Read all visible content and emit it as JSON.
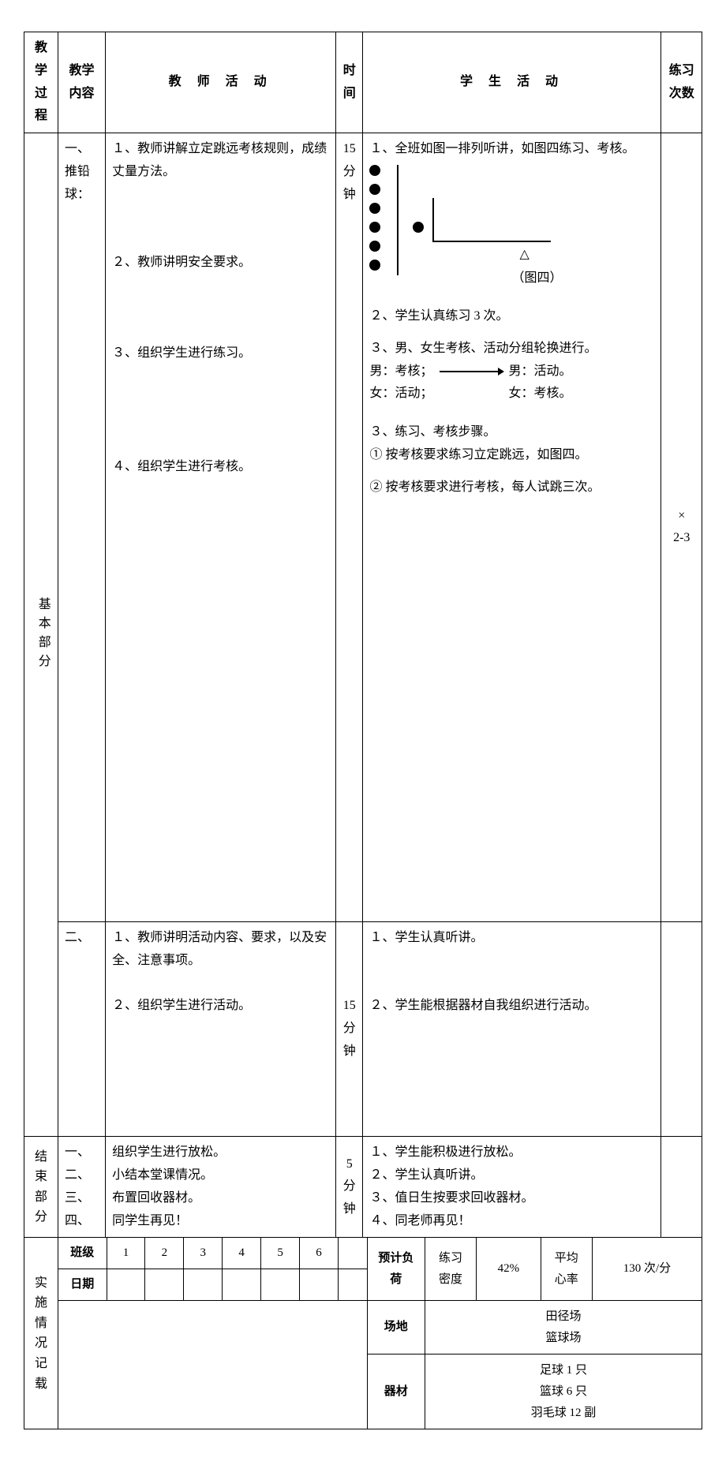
{
  "headers": {
    "process": "教学过程",
    "content": "教学内容",
    "teacher": "教 师 活 动",
    "time": "时间",
    "student": "学 生 活 动",
    "count": "练习次数"
  },
  "basic_section": {
    "process_label": "基本部分",
    "row1": {
      "content": "一、推铅球：",
      "teacher": "１、教师讲解立定跳远考核规则，成绩丈量方法。\n\n\n\n２、教师讲明安全要求。\n\n\n\n３、组织学生进行练习。\n\n\n\n\n４、组织学生进行考核。",
      "time": "15分钟",
      "student_intro": "１、全班如图一排列听讲，如图四练习、考核。",
      "student_p2": "２、学生认真练习 3 次。",
      "student_p3": "３、男、女生考核、活动分组轮换进行。",
      "student_p3_m1": "男：考核；",
      "student_p3_m2": "男：活动。",
      "student_p3_f1": "女：活动；",
      "student_p3_f2": "女：考核。",
      "student_p4": "３、练习、考核步骤。",
      "student_p4_1": "① 按考核要求练习立定跳远，如图四。",
      "student_p4_2": "② 按考核要求进行考核，每人试跳三次。",
      "fig_label": "（图四）",
      "count": "×\n2-3"
    },
    "row2": {
      "content": "二、",
      "teacher": "１、教师讲明活动内容、要求，以及安全、注意事项。\n\n２、组织学生进行活动。",
      "time": "15分钟",
      "student": "１、学生认真听讲。\n\n\n２、学生能根据器材自我组织进行活动。"
    }
  },
  "end_section": {
    "process_label": "结束部分",
    "content": "一、\n二、\n三、\n四、",
    "teacher": "组织学生进行放松。\n小结本堂课情况。\n布置回收器材。\n同学生再见！",
    "time": "5分钟",
    "student": "１、学生能积极进行放松。\n２、学生认真听讲。\n３、值日生按要求回收器材。\n４、同老师再见！"
  },
  "impl_section": {
    "process_label": "实施情况记载",
    "class_label": "班级",
    "date_label": "日期",
    "cols": [
      "1",
      "2",
      "3",
      "4",
      "5",
      "6"
    ],
    "load_label": "预计负荷",
    "density_label": "练习\n密度",
    "density_val": "42%",
    "hr_label": "平均\n心率",
    "hr_val": "130 次/分",
    "venue_label": "场地",
    "venue_val": "田径场\n篮球场",
    "equip_label": "器材",
    "equip_val": "足球 1 只\n篮球 6 只\n羽毛球 12 副"
  }
}
